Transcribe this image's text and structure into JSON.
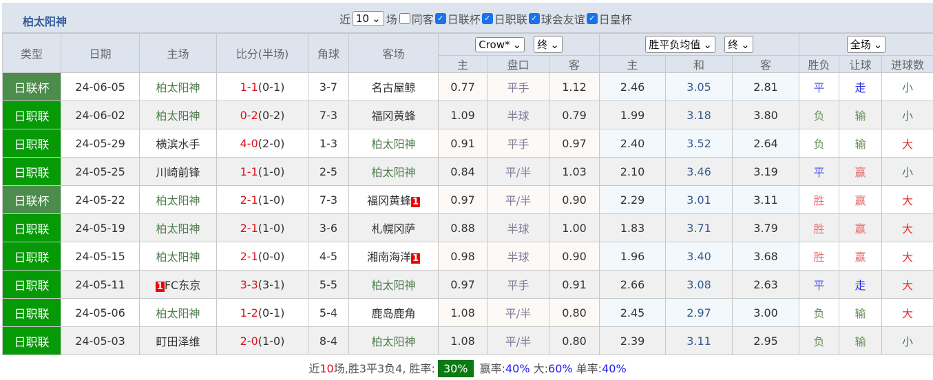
{
  "team": "柏太阳神",
  "filters": {
    "recent_label": "近",
    "recent_value": "10",
    "games_label": "场",
    "options": [
      {
        "label": "同客",
        "checked": false
      },
      {
        "label": "日联杯",
        "checked": true
      },
      {
        "label": "日职联",
        "checked": true
      },
      {
        "label": "球会友谊",
        "checked": true
      },
      {
        "label": "日皇杯",
        "checked": true
      }
    ]
  },
  "headers": {
    "type": "类型",
    "date": "日期",
    "home": "主场",
    "score": "比分(半场)",
    "corner": "角球",
    "away": "客场",
    "ah_company": "Crow*",
    "ah_time": "终",
    "eu_company": "胜平负均值",
    "eu_time": "终",
    "result_scope": "全场",
    "sub": [
      "主",
      "盘口",
      "客",
      "主",
      "和",
      "客",
      "胜负",
      "让球",
      "进球数"
    ]
  },
  "type_colors": {
    "日联杯": "#4c8c4c",
    "日职联": "#079a07"
  },
  "rows": [
    {
      "type": "日联杯",
      "date": "24-06-05",
      "home": "柏太阳神",
      "ft": "1-1",
      "ht": "(0-1)",
      "corner": "3-7",
      "away": "名古屋鲸",
      "home_red": "",
      "away_red": "",
      "ah": [
        "0.77",
        "平手",
        "1.12"
      ],
      "eu": [
        "2.46",
        "3.05",
        "2.81"
      ],
      "res": [
        "平",
        "走",
        "小"
      ]
    },
    {
      "type": "日职联",
      "date": "24-06-02",
      "home": "柏太阳神",
      "ft": "0-2",
      "ht": "(0-2)",
      "corner": "7-3",
      "away": "福冈黄蜂",
      "home_red": "",
      "away_red": "",
      "ah": [
        "1.09",
        "半球",
        "0.79"
      ],
      "eu": [
        "1.99",
        "3.18",
        "3.80"
      ],
      "res": [
        "负",
        "输",
        "小"
      ]
    },
    {
      "type": "日职联",
      "date": "24-05-29",
      "home": "横滨水手",
      "ft": "4-0",
      "ht": "(2-0)",
      "corner": "1-3",
      "away": "柏太阳神",
      "home_red": "",
      "away_red": "",
      "ah": [
        "0.91",
        "平手",
        "0.97"
      ],
      "eu": [
        "2.40",
        "3.52",
        "2.64"
      ],
      "res": [
        "负",
        "输",
        "大"
      ]
    },
    {
      "type": "日职联",
      "date": "24-05-25",
      "home": "川崎前锋",
      "ft": "1-1",
      "ht": "(1-0)",
      "corner": "2-5",
      "away": "柏太阳神",
      "home_red": "",
      "away_red": "",
      "ah": [
        "0.84",
        "平/半",
        "1.03"
      ],
      "eu": [
        "2.10",
        "3.46",
        "3.19"
      ],
      "res": [
        "平",
        "赢",
        "小"
      ]
    },
    {
      "type": "日联杯",
      "date": "24-05-22",
      "home": "柏太阳神",
      "ft": "2-1",
      "ht": "(1-0)",
      "corner": "7-3",
      "away": "福冈黄蜂",
      "home_red": "",
      "away_red": "1",
      "ah": [
        "0.97",
        "平/半",
        "0.90"
      ],
      "eu": [
        "2.29",
        "3.01",
        "3.11"
      ],
      "res": [
        "胜",
        "赢",
        "大"
      ]
    },
    {
      "type": "日职联",
      "date": "24-05-19",
      "home": "柏太阳神",
      "ft": "2-1",
      "ht": "(1-0)",
      "corner": "3-6",
      "away": "札幌冈萨",
      "home_red": "",
      "away_red": "",
      "ah": [
        "0.88",
        "半球",
        "1.00"
      ],
      "eu": [
        "1.83",
        "3.71",
        "3.79"
      ],
      "res": [
        "胜",
        "赢",
        "大"
      ]
    },
    {
      "type": "日职联",
      "date": "24-05-15",
      "home": "柏太阳神",
      "ft": "2-1",
      "ht": "(0-0)",
      "corner": "4-5",
      "away": "湘南海洋",
      "home_red": "",
      "away_red": "1",
      "ah": [
        "0.98",
        "半球",
        "0.90"
      ],
      "eu": [
        "1.96",
        "3.40",
        "3.68"
      ],
      "res": [
        "胜",
        "赢",
        "大"
      ]
    },
    {
      "type": "日职联",
      "date": "24-05-11",
      "home": "FC东京",
      "ft": "3-3",
      "ht": "(3-1)",
      "corner": "5-5",
      "away": "柏太阳神",
      "home_red": "1",
      "away_red": "",
      "ah": [
        "0.97",
        "平手",
        "0.91"
      ],
      "eu": [
        "2.66",
        "3.08",
        "2.63"
      ],
      "res": [
        "平",
        "走",
        "大"
      ]
    },
    {
      "type": "日职联",
      "date": "24-05-06",
      "home": "柏太阳神",
      "ft": "1-2",
      "ht": "(0-1)",
      "corner": "5-4",
      "away": "鹿岛鹿角",
      "home_red": "",
      "away_red": "",
      "ah": [
        "1.08",
        "平/半",
        "0.80"
      ],
      "eu": [
        "2.45",
        "2.97",
        "3.00"
      ],
      "res": [
        "负",
        "输",
        "大"
      ]
    },
    {
      "type": "日职联",
      "date": "24-05-03",
      "home": "町田泽维",
      "ft": "2-0",
      "ht": "(1-0)",
      "corner": "8-4",
      "away": "柏太阳神",
      "home_red": "",
      "away_red": "",
      "ah": [
        "1.08",
        "平/半",
        "0.80"
      ],
      "eu": [
        "2.39",
        "3.11",
        "2.95"
      ],
      "res": [
        "负",
        "输",
        "小"
      ]
    }
  ],
  "result_colors": {
    "胜": "#e86a6a",
    "赢": "#e86a6a",
    "大": "#e83030",
    "平": "#5555ee",
    "走": "#2a2aee",
    "负": "#6a8f5a",
    "输": "#6a8f5a",
    "小": "#4f7f4f"
  },
  "summary": {
    "p1": "近",
    "n": "10",
    "p2": "场,胜3平3负4, 胜率:",
    "win_rate": "30%",
    "p3": " 赢率:",
    "ah_rate": "40%",
    "p4": " 大:",
    "over_rate": "60%",
    "p5": " 单率:",
    "odd_rate": "40%"
  }
}
